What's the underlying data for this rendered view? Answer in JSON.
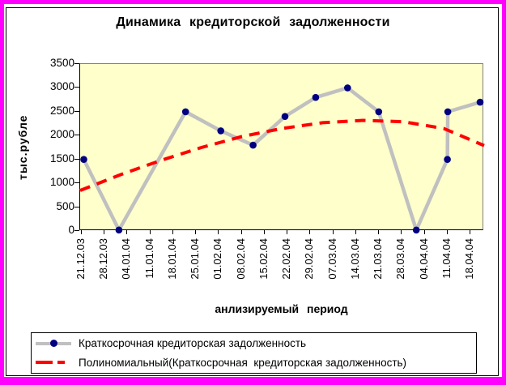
{
  "chart_data": {
    "type": "line",
    "title": "Динамика кредиторской задолженности",
    "xlabel": "анлизируемый период",
    "ylabel": "тыс.рубле",
    "ylim": [
      0,
      3500
    ],
    "y_ticks": [
      0,
      500,
      1000,
      1500,
      2000,
      2500,
      3000,
      3500
    ],
    "x_tick_labels": [
      "21.12.03",
      "28.12.03",
      "04.01.04",
      "11.01.04",
      "18.01.04",
      "25.01.04",
      "01.02.04",
      "08.02.04",
      "15.02.04",
      "22.02.04",
      "29.02.04",
      "07.03.04",
      "14.03.04",
      "21.03.04",
      "28.03.04",
      "04.04.04",
      "11.04.04",
      "18.04.04"
    ],
    "plot_background": "#ffffcc",
    "grid": "off",
    "series": [
      {
        "name": "Краткосрочная кредиторская задолженность",
        "line_color": "#c0c0c0",
        "marker_color": "#000080",
        "points": [
          {
            "x": 0.009,
            "value": 1500
          },
          {
            "x": 0.096,
            "value": 20
          },
          {
            "x": 0.261,
            "value": 2500
          },
          {
            "x": 0.348,
            "value": 2100
          },
          {
            "x": 0.428,
            "value": 1800
          },
          {
            "x": 0.507,
            "value": 2400
          },
          {
            "x": 0.583,
            "value": 2800
          },
          {
            "x": 0.662,
            "value": 3000
          },
          {
            "x": 0.739,
            "value": 2500
          },
          {
            "x": 0.832,
            "value": 20
          },
          {
            "x": 0.909,
            "value": 1500
          },
          {
            "x": 0.91,
            "value": 2500
          },
          {
            "x": 0.99,
            "value": 2700
          }
        ]
      }
    ],
    "trend": {
      "name": "Полиномиальный(Краткосрочная  кредиторская задолженность)",
      "color": "#ff0000",
      "style": "dashed",
      "samples": [
        {
          "x": 0.0,
          "value": 850
        },
        {
          "x": 0.1,
          "value": 1180
        },
        {
          "x": 0.2,
          "value": 1480
        },
        {
          "x": 0.3,
          "value": 1750
        },
        {
          "x": 0.4,
          "value": 1980
        },
        {
          "x": 0.5,
          "value": 2150
        },
        {
          "x": 0.6,
          "value": 2270
        },
        {
          "x": 0.7,
          "value": 2320
        },
        {
          "x": 0.8,
          "value": 2290
        },
        {
          "x": 0.9,
          "value": 2150
        },
        {
          "x": 1.0,
          "value": 1790
        }
      ]
    },
    "legend": {
      "position": "bottom",
      "entries": [
        "Краткосрочная кредиторская задолженность",
        "Полиномиальный(Краткосрочная  кредиторская задолженность)"
      ]
    },
    "frame_color": "#ff00ff"
  }
}
